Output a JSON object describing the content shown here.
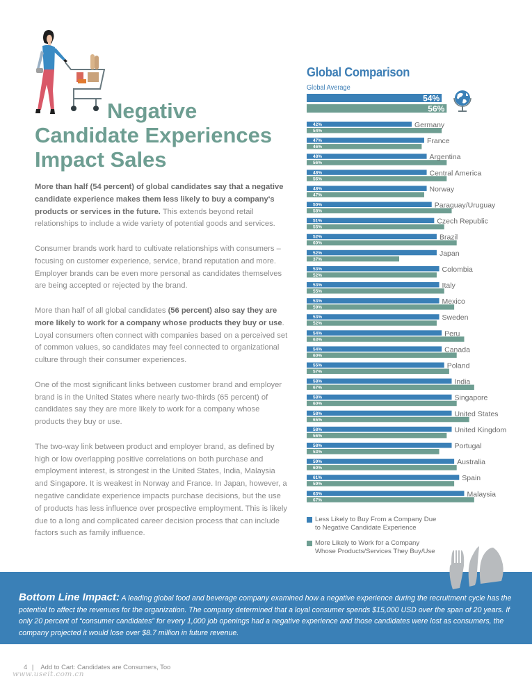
{
  "title": {
    "line1": "Negative",
    "line2": "Candidate Experiences",
    "line3": "Impact Sales"
  },
  "body": {
    "p1_bold": "More than half (54 percent) of global candidates say that a negative candidate experience makes them less likely to buy a company's products or services in the future.",
    "p1_rest": " This extends beyond retail relationships to include a wide variety of potential goods and services.",
    "p2": "Consumer brands work hard to cultivate relationships with consumers – focusing on customer experience, service, brand reputation and more. Employer brands can be even more personal as candidates themselves are being accepted or rejected by the brand.",
    "p3_start": "More than half of all global candidates ",
    "p3_bold": "(56 percent) also say they are more likely to work for a company whose products they buy or use",
    "p3_rest": ". Loyal consumers often connect with companies based on a perceived set of common values, so candidates may feel connected to organizational culture through their consumer experiences.",
    "p4": "One of the most significant links between customer brand and employer brand is in the United States where nearly two-thirds (65 percent) of candidates say they are more likely to work for a company whose products they buy or use.",
    "p5": "The two-way link between product and employer brand, as defined by high or low overlapping positive correlations on both purchase and employment interest, is strongest in the United States, India, Malaysia and Singapore. It is weakest in Norway and France. In Japan, however, a negative candidate experience impacts purchase decisions, but the use of products has less influence over prospective employment. This is likely due to a long and complicated career decision process that can include factors such as family influence."
  },
  "chart_data": {
    "type": "bar",
    "orientation": "horizontal",
    "title": "Global Comparison",
    "global_average_label": "Global Average",
    "global_average": {
      "less_likely_to_buy": 54,
      "more_likely_to_work": 56
    },
    "categories": [
      "Germany",
      "France",
      "Argentina",
      "Central America",
      "Norway",
      "Paraguay/Uruguay",
      "Czech Republic",
      "Brazil",
      "Japan",
      "Colombia",
      "Italy",
      "Mexico",
      "Sweden",
      "Peru",
      "Canada",
      "Poland",
      "India",
      "Singapore",
      "United States",
      "United Kingdom",
      "Portugal",
      "Australia",
      "Spain",
      "Malaysia"
    ],
    "series": [
      {
        "name": "Less Likely to Buy From a Company Due to Negative Candidate Experience",
        "color": "#3a80b7",
        "values": [
          42,
          47,
          48,
          48,
          48,
          50,
          51,
          52,
          52,
          53,
          53,
          53,
          53,
          54,
          54,
          55,
          58,
          58,
          58,
          58,
          58,
          59,
          61,
          63
        ]
      },
      {
        "name": "More Likely to Work for a Company Whose Products/Services They Buy/Use",
        "color": "#6e9e92",
        "values": [
          54,
          46,
          56,
          56,
          47,
          58,
          55,
          60,
          37,
          52,
          55,
          59,
          52,
          63,
          60,
          57,
          67,
          60,
          65,
          56,
          53,
          60,
          59,
          67
        ]
      }
    ],
    "unit": "%",
    "xlim": [
      0,
      70
    ]
  },
  "legend": {
    "items": [
      {
        "label_line1": "Less Likely to Buy From a Company Due",
        "label_line2": "to Negative Candidate Experience",
        "color": "#3a80b7"
      },
      {
        "label_line1": "More Likely to Work for a Company",
        "label_line2": "Whose Products/Services They Buy/Use",
        "color": "#6e9e92"
      }
    ]
  },
  "bottom_line": {
    "lead": "Bottom Line Impact:",
    "text": " A leading global food and beverage company examined how a negative experience during the recruitment cycle has the potential to affect the revenues for the organization. The company determined that a loyal consumer spends $15,000 USD over the span of 20 years. If only 20 percent of “consumer candidates” for every 1,000 job openings had a negative experience and those candidates were lost as consumers, the company projected it would lose over $8.7 million in future revenue."
  },
  "footer": {
    "page_number": "4",
    "separator": "|",
    "title": "Add to Cart: Candidates are Consumers, Too",
    "watermark": "www.useit.com.cn"
  },
  "colors": {
    "blue": "#3a80b7",
    "green": "#6e9e92",
    "body_text": "#8a8a8a"
  }
}
